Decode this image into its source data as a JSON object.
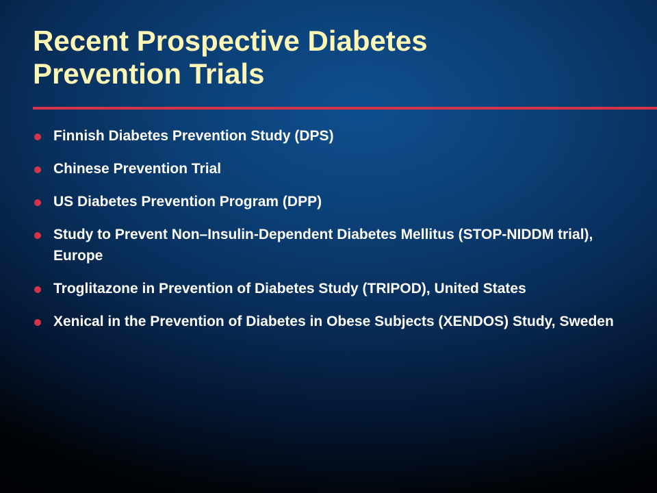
{
  "slide": {
    "title_lines": [
      "Recent Prospective Diabetes",
      "Prevention Trials"
    ],
    "accent_color": "#d3344a",
    "title_color": "#fdf6b4",
    "bullet_icon": "bullet-dot-icon",
    "bullets": [
      "Finnish Diabetes Prevention Study (DPS)",
      "Chinese Prevention Trial",
      "US Diabetes Prevention Program (DPP)",
      "Study to Prevent Non–Insulin-Dependent Diabetes Mellitus (STOP-NIDDM trial), Europe",
      "Troglitazone in Prevention of Diabetes Study (TRIPOD), United States",
      "Xenical in the Prevention of Diabetes in Obese Subjects (XENDOS) Study, Sweden"
    ]
  }
}
